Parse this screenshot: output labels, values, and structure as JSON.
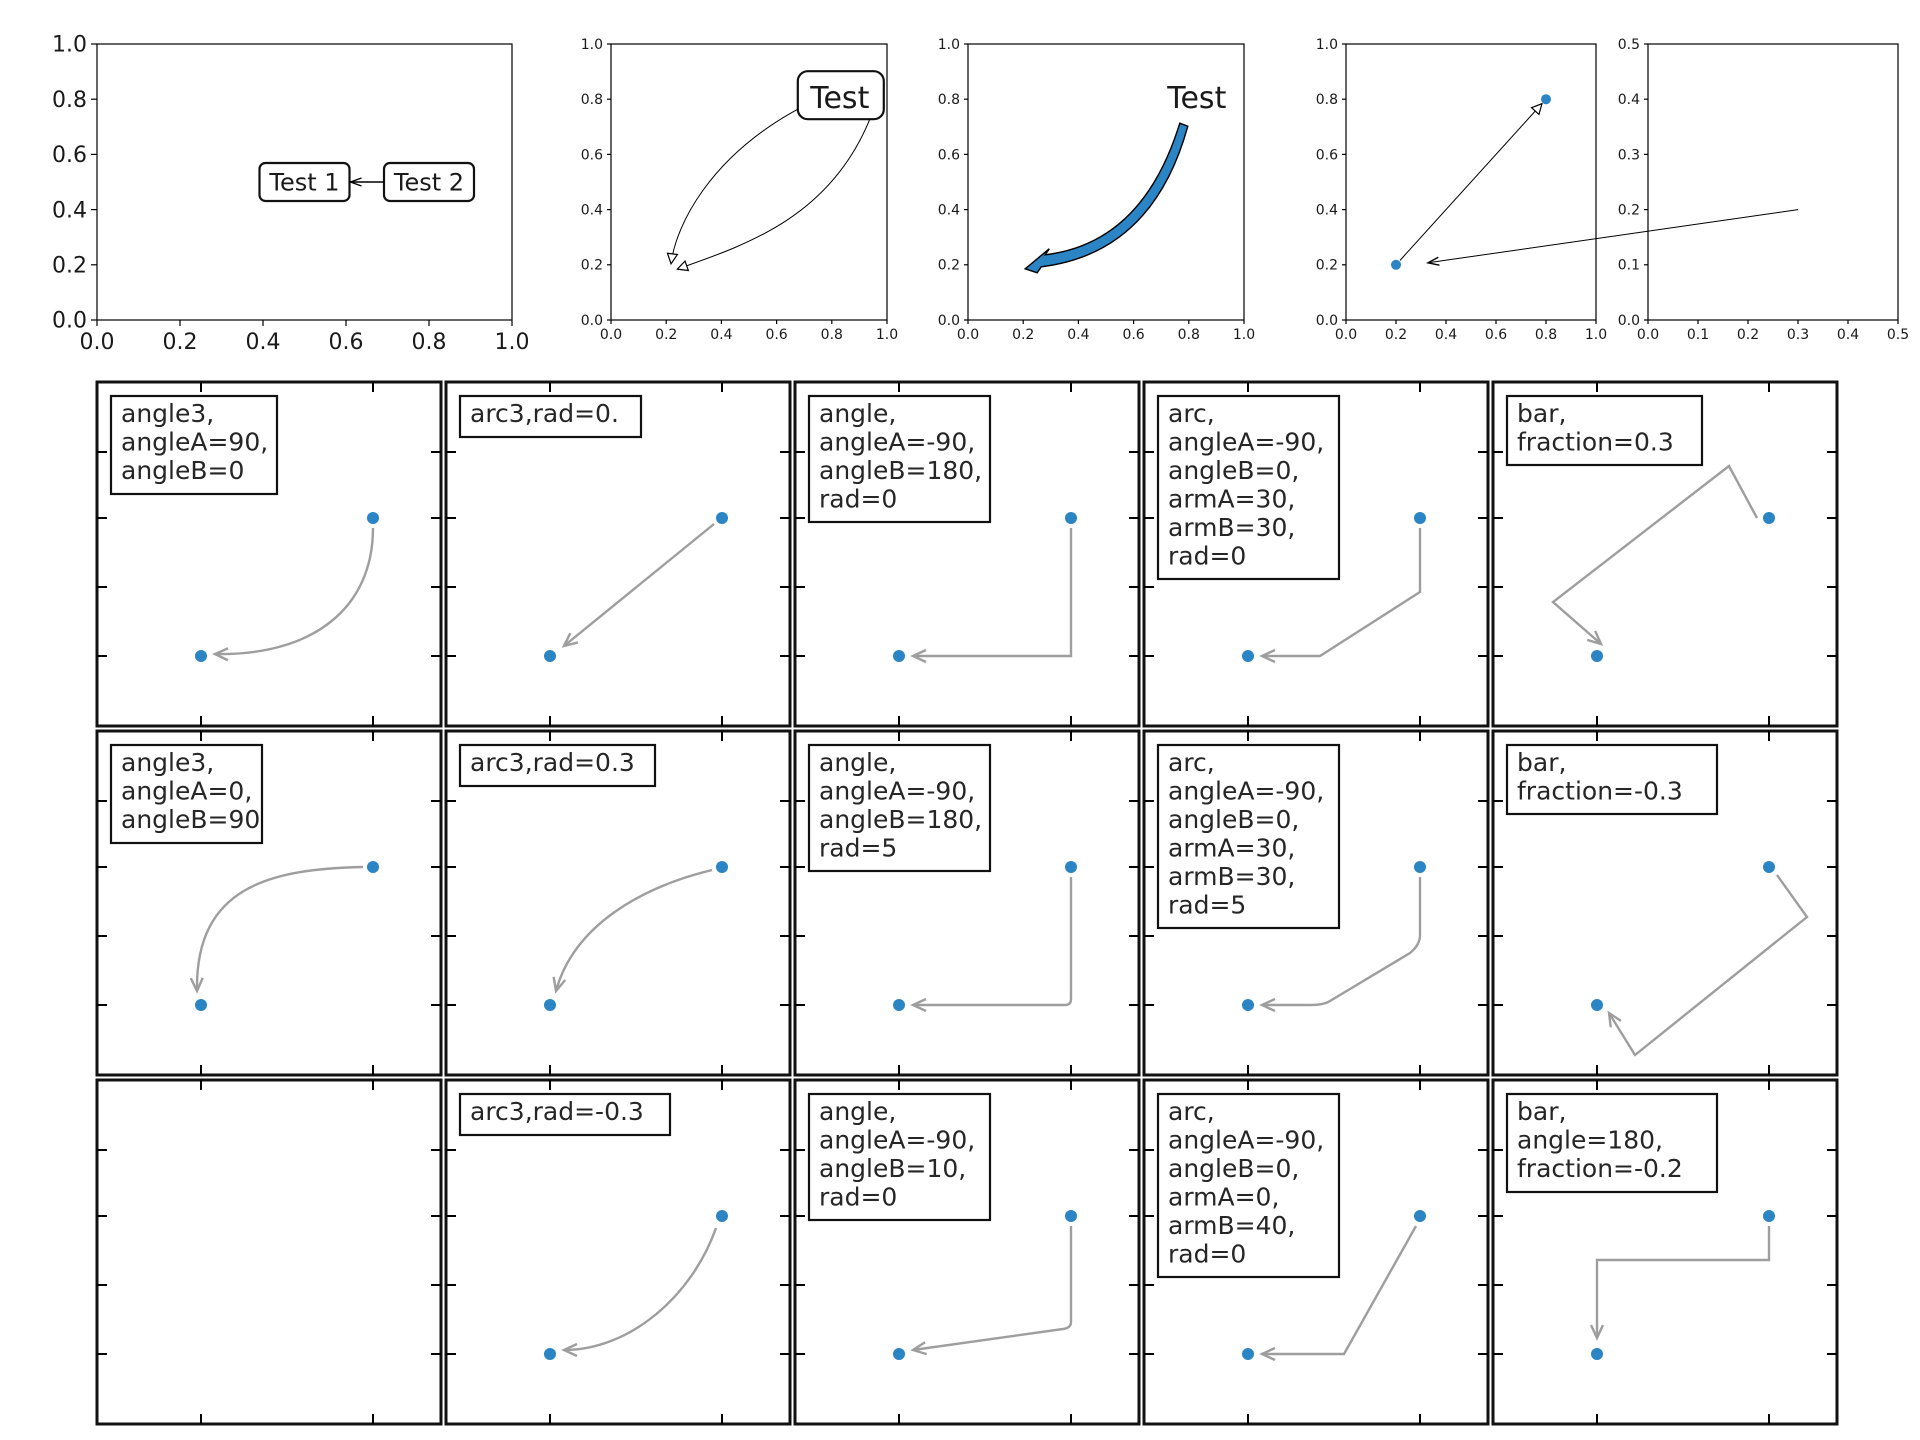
{
  "colors": {
    "point": "#2b84c4",
    "connector": "#9e9e9e",
    "fancy_arrow_fill": "#2b84c4"
  },
  "chart_data": [
    {
      "type": "annotation",
      "xlim": [
        0,
        1
      ],
      "ylim": [
        0,
        1
      ],
      "x_ticks": [
        "0.0",
        "0.2",
        "0.4",
        "0.6",
        "0.8",
        "1.0"
      ],
      "y_ticks": [
        "0.0",
        "0.2",
        "0.4",
        "0.6",
        "0.8",
        "1.0"
      ],
      "annotations": [
        {
          "text": "Test 1",
          "x": 0.5,
          "y": 0.5,
          "box": "round"
        },
        {
          "text": "Test 2",
          "x": 0.8,
          "y": 0.5,
          "box": "round",
          "arrow_to": "Test 1"
        }
      ]
    },
    {
      "type": "annotation",
      "xlim": [
        0,
        1
      ],
      "ylim": [
        0,
        1
      ],
      "x_ticks": [
        "0.0",
        "0.2",
        "0.4",
        "0.6",
        "0.8",
        "1.0"
      ],
      "y_ticks": [
        "0.0",
        "0.2",
        "0.4",
        "0.6",
        "0.8",
        "1.0"
      ],
      "annotations": [
        {
          "text": "Test",
          "x": 0.8,
          "y": 0.8,
          "box": "round4",
          "arrow_to": [
            0.2,
            0.2
          ],
          "arrows": 2
        }
      ]
    },
    {
      "type": "annotation",
      "xlim": [
        0,
        1
      ],
      "ylim": [
        0,
        1
      ],
      "x_ticks": [
        "0.0",
        "0.2",
        "0.4",
        "0.6",
        "0.8",
        "1.0"
      ],
      "y_ticks": [
        "0.0",
        "0.2",
        "0.4",
        "0.6",
        "0.8",
        "1.0"
      ],
      "annotations": [
        {
          "text": "Test",
          "x": 0.8,
          "y": 0.8,
          "arrow_to": [
            0.2,
            0.2
          ],
          "arrow_style": "fancy"
        }
      ]
    },
    {
      "type": "scatter",
      "xlim": [
        0,
        1
      ],
      "ylim": [
        0,
        1
      ],
      "x_ticks": [
        "0.0",
        "0.2",
        "0.4",
        "0.6",
        "0.8",
        "1.0"
      ],
      "y_ticks": [
        "0.0",
        "0.2",
        "0.4",
        "0.6",
        "0.8",
        "1.0"
      ],
      "points": [
        {
          "x": 0.2,
          "y": 0.2
        },
        {
          "x": 0.8,
          "y": 0.8
        }
      ],
      "arrows": [
        {
          "from": [
            0.2,
            0.2
          ],
          "to": [
            0.8,
            0.8
          ]
        }
      ]
    },
    {
      "type": "scatter",
      "xlim": [
        0,
        0.5
      ],
      "ylim": [
        0,
        0.5
      ],
      "x_ticks": [
        "0.0",
        "0.1",
        "0.2",
        "0.3",
        "0.4",
        "0.5"
      ],
      "y_ticks": [
        "0.0",
        "0.1",
        "0.2",
        "0.3",
        "0.4",
        "0.5"
      ],
      "arrows": [
        {
          "from": [
            0.3,
            0.2
          ],
          "to_point_in_left_axes": [
            0.2,
            0.2
          ]
        }
      ]
    }
  ],
  "connection_grid": {
    "points": [
      {
        "x": 0.2,
        "y": 0.2
      },
      {
        "x": 0.8,
        "y": 0.6
      }
    ],
    "panels": [
      [
        "angle3,\nangleA=90,\nangleB=0",
        "arc3,rad=0.",
        "angle,\nangleA=-90,\nangleB=180,\nrad=0",
        "arc,\nangleA=-90,\nangleB=0,\narmA=30,\narmB=30,\nrad=0",
        "bar,\nfraction=0.3"
      ],
      [
        "angle3,\nangleA=0,\nangleB=90",
        "arc3,rad=0.3",
        "angle,\nangleA=-90,\nangleB=180,\nrad=5",
        "arc,\nangleA=-90,\nangleB=0,\narmA=30,\narmB=30,\nrad=5",
        "bar,\nfraction=-0.3"
      ],
      [
        "",
        "arc3,rad=-0.3",
        "angle,\nangleA=-90,\nangleB=10,\nrad=0",
        "arc,\nangleA=-90,\nangleB=0,\narmA=0,\narmB=40,\nrad=0",
        "bar,\nangle=180,\nfraction=-0.2"
      ]
    ]
  }
}
